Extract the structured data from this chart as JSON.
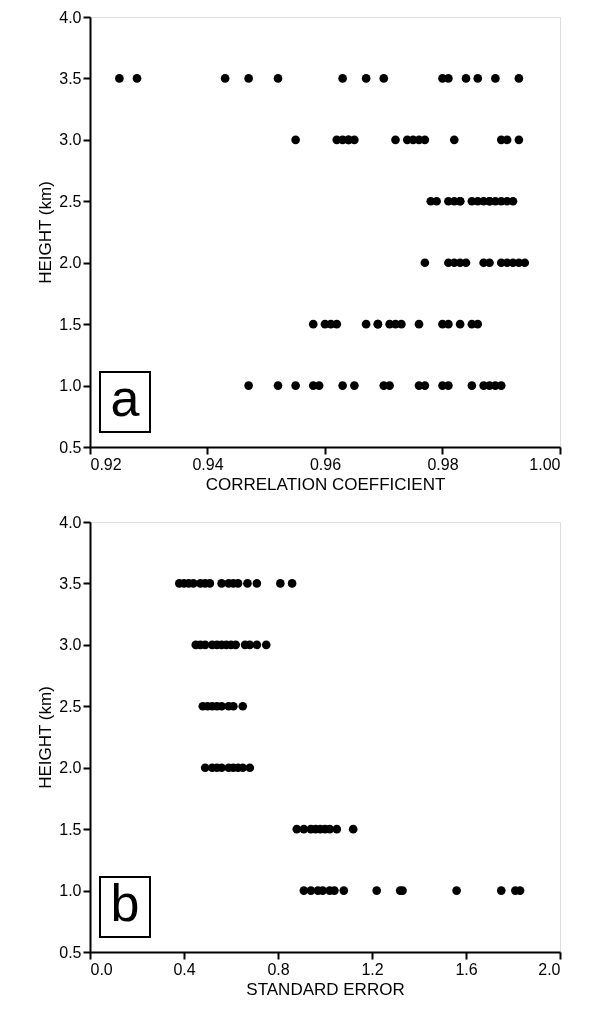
{
  "chart_data": [
    {
      "type": "scatter",
      "xlabel": "CORRELATION COEFFICIENT",
      "ylabel": "HEIGHT (km)",
      "annotations": [
        "a"
      ],
      "marker": "circle",
      "grid": false,
      "xlim": [
        0.92,
        1.0
      ],
      "ylim": [
        0.5,
        4.0
      ],
      "xticks": [
        0.92,
        0.94,
        0.96,
        0.98,
        {
          "value": 1.0,
          "label": "1.00"
        }
      ],
      "yticks": [
        0.5,
        {
          "value": 1.0,
          "label": "1.0"
        },
        1.5,
        {
          "value": 2.0,
          "label": "2.0"
        },
        2.5,
        {
          "value": 3.0,
          "label": "3.0"
        },
        3.5,
        {
          "value": 4.0,
          "label": "4.0"
        }
      ],
      "series": [
        {
          "color": "#000000",
          "x": [
            0.925,
            0.928,
            0.943,
            0.947,
            0.952,
            0.963,
            0.967,
            0.97,
            0.98,
            0.981,
            0.984,
            0.986,
            0.989,
            0.993,
            0.955,
            0.962,
            0.963,
            0.964,
            0.964,
            0.965,
            0.972,
            0.974,
            0.975,
            0.976,
            0.977,
            0.982,
            0.99,
            0.991,
            0.993,
            0.978,
            0.979,
            0.981,
            0.982,
            0.983,
            0.983,
            0.985,
            0.986,
            0.987,
            0.988,
            0.988,
            0.989,
            0.99,
            0.991,
            0.992,
            0.977,
            0.981,
            0.982,
            0.983,
            0.984,
            0.987,
            0.988,
            0.99,
            0.991,
            0.992,
            0.993,
            0.994,
            0.958,
            0.96,
            0.961,
            0.962,
            0.967,
            0.969,
            0.969,
            0.971,
            0.972,
            0.973,
            0.976,
            0.98,
            0.981,
            0.983,
            0.985,
            0.986,
            0.947,
            0.952,
            0.955,
            0.958,
            0.959,
            0.963,
            0.965,
            0.97,
            0.971,
            0.976,
            0.977,
            0.98,
            0.981,
            0.985,
            0.987,
            0.988,
            0.989,
            0.99
          ],
          "values": [
            3.5,
            3.5,
            3.5,
            3.5,
            3.5,
            3.5,
            3.5,
            3.5,
            3.5,
            3.5,
            3.5,
            3.5,
            3.5,
            3.5,
            3.0,
            3.0,
            3.0,
            3.0,
            3.0,
            3.0,
            3.0,
            3.0,
            3.0,
            3.0,
            3.0,
            3.0,
            3.0,
            3.0,
            3.0,
            2.5,
            2.5,
            2.5,
            2.5,
            2.5,
            2.5,
            2.5,
            2.5,
            2.5,
            2.5,
            2.5,
            2.5,
            2.5,
            2.5,
            2.5,
            2.0,
            2.0,
            2.0,
            2.0,
            2.0,
            2.0,
            2.0,
            2.0,
            2.0,
            2.0,
            2.0,
            2.0,
            1.5,
            1.5,
            1.5,
            1.5,
            1.5,
            1.5,
            1.5,
            1.5,
            1.5,
            1.5,
            1.5,
            1.5,
            1.5,
            1.5,
            1.5,
            1.5,
            1.0,
            1.0,
            1.0,
            1.0,
            1.0,
            1.0,
            1.0,
            1.0,
            1.0,
            1.0,
            1.0,
            1.0,
            1.0,
            1.0,
            1.0,
            1.0,
            1.0,
            1.0
          ]
        }
      ]
    },
    {
      "type": "scatter",
      "xlabel": "STANDARD ERROR",
      "ylabel": "HEIGHT (km)",
      "annotations": [
        "b"
      ],
      "marker": "circle",
      "grid": false,
      "xlim": [
        0.0,
        2.0
      ],
      "ylim": [
        0.5,
        4.0
      ],
      "xticks": [
        {
          "value": 0.0,
          "label": "0.0"
        },
        0.4,
        0.8,
        1.2,
        1.6,
        {
          "value": 2.0,
          "label": "2.0"
        }
      ],
      "yticks": [
        0.5,
        {
          "value": 1.0,
          "label": "1.0"
        },
        1.5,
        {
          "value": 2.0,
          "label": "2.0"
        },
        2.5,
        {
          "value": 3.0,
          "label": "3.0"
        },
        3.5,
        {
          "value": 4.0,
          "label": "4.0"
        }
      ],
      "series": [
        {
          "color": "#000000",
          "x": [
            0.38,
            0.4,
            0.42,
            0.44,
            0.47,
            0.49,
            0.51,
            0.56,
            0.59,
            0.61,
            0.63,
            0.67,
            0.71,
            0.81,
            0.86,
            0.45,
            0.47,
            0.49,
            0.52,
            0.54,
            0.56,
            0.58,
            0.6,
            0.62,
            0.66,
            0.68,
            0.71,
            0.75,
            0.48,
            0.5,
            0.52,
            0.54,
            0.56,
            0.59,
            0.61,
            0.65,
            0.49,
            0.52,
            0.54,
            0.56,
            0.59,
            0.61,
            0.63,
            0.65,
            0.68,
            0.88,
            0.91,
            0.94,
            0.96,
            0.98,
            1.0,
            1.02,
            1.05,
            1.12,
            0.91,
            0.94,
            0.97,
            0.99,
            1.02,
            1.04,
            1.08,
            1.22,
            1.32,
            1.33,
            1.56,
            1.75,
            1.81,
            1.83
          ],
          "values": [
            3.5,
            3.5,
            3.5,
            3.5,
            3.5,
            3.5,
            3.5,
            3.5,
            3.5,
            3.5,
            3.5,
            3.5,
            3.5,
            3.5,
            3.5,
            3.0,
            3.0,
            3.0,
            3.0,
            3.0,
            3.0,
            3.0,
            3.0,
            3.0,
            3.0,
            3.0,
            3.0,
            3.0,
            2.5,
            2.5,
            2.5,
            2.5,
            2.5,
            2.5,
            2.5,
            2.5,
            2.0,
            2.0,
            2.0,
            2.0,
            2.0,
            2.0,
            2.0,
            2.0,
            2.0,
            1.5,
            1.5,
            1.5,
            1.5,
            1.5,
            1.5,
            1.5,
            1.5,
            1.5,
            1.0,
            1.0,
            1.0,
            1.0,
            1.0,
            1.0,
            1.0,
            1.0,
            1.0,
            1.0,
            1.0,
            1.0,
            1.0,
            1.0
          ]
        }
      ]
    }
  ]
}
